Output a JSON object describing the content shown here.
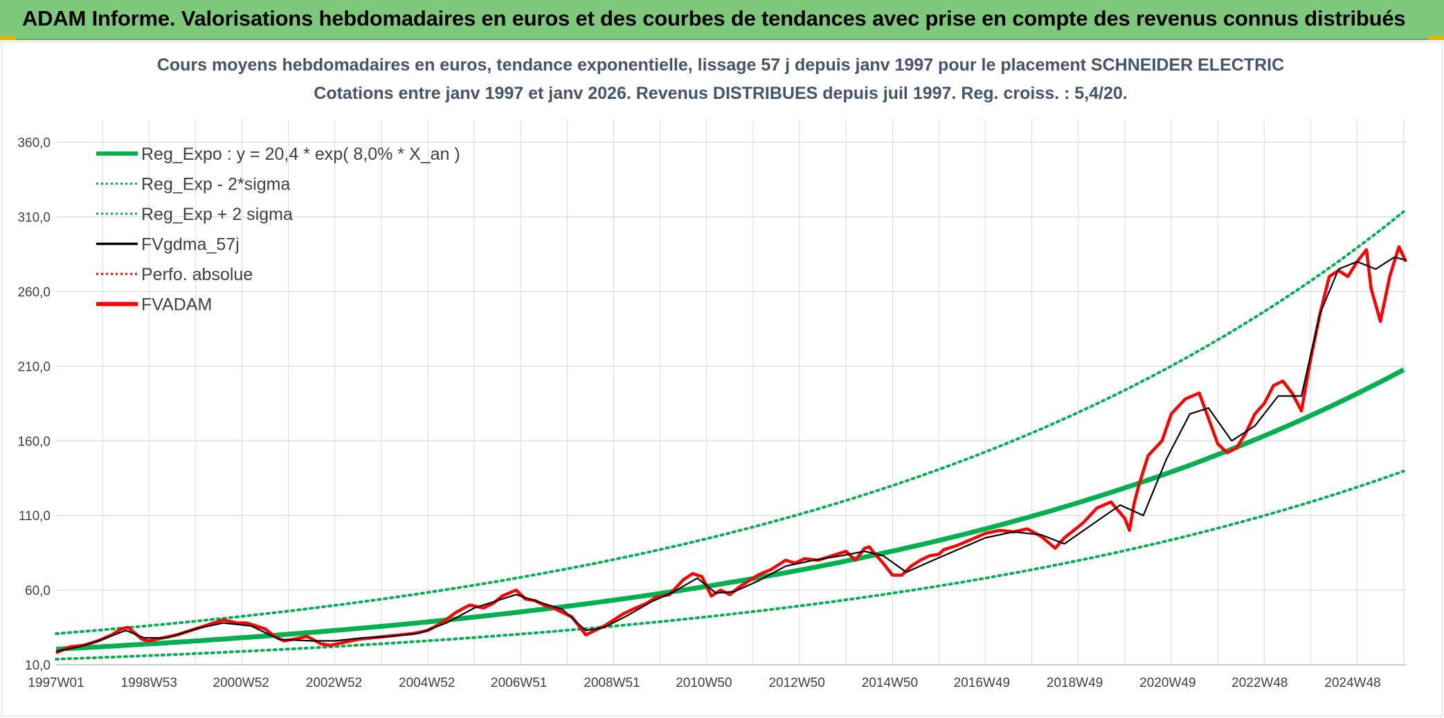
{
  "banner": {
    "title": "ADAM Informe. Valorisations hebdomadaires en euros et des courbes de tendances avec prise en compte des revenus connus distribués"
  },
  "colors": {
    "banner_bg": "#7dc87a",
    "trend": "#00b050",
    "smooth": "#000000",
    "fvadam": "#ff0000",
    "perfo": "#ff0000",
    "title_text": "#44546a",
    "grid": "#d9d9d9"
  },
  "chart_data": {
    "type": "line",
    "title_line1": "Cours moyens hebdomadaires en euros, tendance exponentielle, lissage 57 j depuis janv 1997 pour le placement SCHNEIDER ELECTRIC",
    "title_line2": "Cotations entre janv 1997 et janv 2026. Revenus DISTRIBUES depuis juil 1997. Reg. croiss. : 5,4/20.",
    "xlabel": "",
    "ylabel": "",
    "x_range_years": [
      1997.0,
      2026.05
    ],
    "ylim": [
      10,
      370
    ],
    "y_ticks": [
      "10,0",
      "60,0",
      "110,0",
      "160,0",
      "210,0",
      "260,0",
      "310,0",
      "360,0"
    ],
    "x_ticks": [
      "1997W01",
      "1998W53",
      "2000W52",
      "2002W52",
      "2004W52",
      "2006W51",
      "2008W51",
      "2010W50",
      "2012W50",
      "2014W50",
      "2016W49",
      "2018W49",
      "2020W49",
      "2022W48",
      "2024W48"
    ],
    "legend": [
      {
        "label": "Reg_Expo : y = 20,4 * exp( 8,0% *  X_an )",
        "style": "solid-thick",
        "color": "#00b050"
      },
      {
        "label": "Reg_Exp - 2*sigma",
        "style": "dotted",
        "color": "#00b050"
      },
      {
        "label": "Reg_Exp + 2 sigma",
        "style": "dotted",
        "color": "#00b050"
      },
      {
        "label": "FVgdma_57j",
        "style": "solid",
        "color": "#000000"
      },
      {
        "label": "Perfo. absolue",
        "style": "dotted",
        "color": "#ff0000"
      },
      {
        "label": "FVADAM",
        "style": "solid-thick",
        "color": "#ff0000"
      }
    ],
    "regression": {
      "a": 20.4,
      "rate": 0.08,
      "lower_factor": 0.673,
      "upper_factor": 1.51
    },
    "series": [
      {
        "name": "FVADAM",
        "x": [
          1997.0,
          1997.3,
          1997.6,
          1997.9,
          1998.2,
          1998.4,
          1998.55,
          1998.7,
          1998.85,
          1999.0,
          1999.3,
          1999.6,
          2000.0,
          2000.3,
          2000.6,
          2000.9,
          2001.1,
          2001.3,
          2001.5,
          2001.7,
          2001.9,
          2002.1,
          2002.4,
          2002.7,
          2002.9,
          2003.2,
          2003.5,
          2003.8,
          2004.1,
          2004.4,
          2004.7,
          2005.0,
          2005.3,
          2005.6,
          2005.9,
          2006.2,
          2006.4,
          2006.6,
          2006.9,
          2007.1,
          2007.3,
          2007.5,
          2007.7,
          2007.9,
          2008.1,
          2008.4,
          2008.6,
          2008.8,
          2009.0,
          2009.2,
          2009.4,
          2009.7,
          2009.9,
          2010.2,
          2010.5,
          2010.7,
          2010.9,
          2011.1,
          2011.3,
          2011.5,
          2011.7,
          2011.9,
          2012.1,
          2012.4,
          2012.7,
          2012.9,
          2013.1,
          2013.4,
          2013.7,
          2014.0,
          2014.2,
          2014.4,
          2014.5,
          2014.6,
          2014.8,
          2015.0,
          2015.2,
          2015.4,
          2015.6,
          2015.8,
          2016.0,
          2016.1,
          2016.4,
          2016.7,
          2017.0,
          2017.3,
          2017.6,
          2017.9,
          2018.2,
          2018.5,
          2018.7,
          2018.9,
          2019.1,
          2019.4,
          2019.7,
          2020.0,
          2020.1,
          2020.2,
          2020.3,
          2020.5,
          2020.8,
          2021.0,
          2021.3,
          2021.6,
          2021.8,
          2022.0,
          2022.2,
          2022.4,
          2022.6,
          2022.8,
          2023.0,
          2023.2,
          2023.4,
          2023.6,
          2023.8,
          2024.0,
          2024.2,
          2024.4,
          2024.6,
          2024.8,
          2025.0,
          2025.2,
          2025.3,
          2025.5,
          2025.7,
          2025.9,
          2026.05
        ],
        "values": [
          18,
          22,
          23,
          26,
          30,
          34,
          35,
          31,
          27,
          26,
          28,
          30,
          34,
          37,
          40,
          38,
          38,
          36,
          34,
          29,
          26,
          27,
          29,
          24,
          23,
          25,
          27,
          28,
          29,
          30,
          31,
          33,
          38,
          45,
          50,
          48,
          51,
          56,
          60,
          54,
          53,
          50,
          48,
          45,
          42,
          30,
          33,
          36,
          40,
          44,
          47,
          51,
          55,
          57,
          67,
          71,
          69,
          56,
          60,
          57,
          62,
          66,
          70,
          74,
          80,
          78,
          81,
          80,
          83,
          86,
          80,
          88,
          89,
          85,
          78,
          70,
          70,
          76,
          80,
          83,
          84,
          87,
          90,
          94,
          98,
          100,
          99,
          101,
          96,
          88,
          95,
          100,
          105,
          115,
          119,
          108,
          100,
          118,
          130,
          150,
          160,
          178,
          188,
          192,
          175,
          158,
          152,
          155,
          165,
          178,
          185,
          197,
          200,
          192,
          180,
          215,
          245,
          270,
          274,
          270,
          280,
          288,
          262,
          240,
          270,
          290,
          280
        ],
        "color": "#ff0000"
      },
      {
        "name": "FVgdma_57j",
        "x": [
          1997.0,
          1997.5,
          1998.0,
          1998.5,
          1998.9,
          1999.4,
          2000.0,
          2000.6,
          2001.2,
          2001.8,
          2002.5,
          2003.0,
          2003.6,
          2004.2,
          2004.8,
          2005.4,
          2006.0,
          2006.5,
          2006.9,
          2007.4,
          2007.9,
          2008.4,
          2008.8,
          2009.3,
          2009.8,
          2010.3,
          2010.8,
          2011.2,
          2011.6,
          2012.1,
          2012.7,
          2013.3,
          2013.9,
          2014.4,
          2014.8,
          2015.3,
          2015.8,
          2016.4,
          2017.0,
          2017.6,
          2018.2,
          2018.7,
          2019.3,
          2019.9,
          2020.4,
          2020.9,
          2021.4,
          2021.8,
          2022.3,
          2022.8,
          2023.3,
          2023.8,
          2024.2,
          2024.6,
          2025.0,
          2025.4,
          2025.8,
          2026.05
        ],
        "values": [
          19,
          22,
          27,
          33,
          28,
          28,
          34,
          38,
          36,
          27,
          26,
          26,
          28,
          29,
          31,
          38,
          48,
          53,
          57,
          52,
          47,
          33,
          35,
          43,
          52,
          59,
          68,
          58,
          59,
          66,
          76,
          80,
          83,
          86,
          83,
          72,
          79,
          87,
          95,
          99,
          97,
          91,
          104,
          117,
          110,
          148,
          178,
          182,
          160,
          170,
          190,
          190,
          245,
          275,
          280,
          275,
          283,
          281
        ],
        "color": "#000000"
      }
    ]
  }
}
